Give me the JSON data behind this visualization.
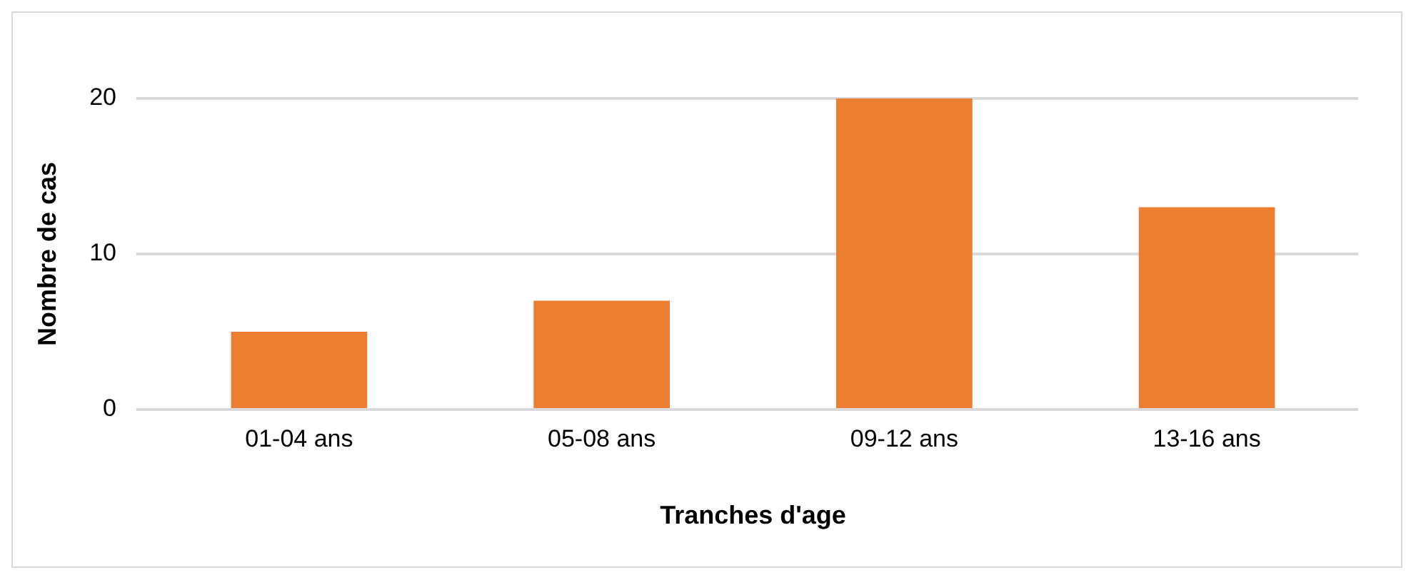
{
  "chart_data": {
    "type": "bar",
    "xlabel": "Tranches d'age",
    "ylabel": "Nombre de cas",
    "categories": [
      "01-04 ans",
      "05-08 ans",
      "09-12 ans",
      "13-16 ans"
    ],
    "values": [
      5,
      7,
      20,
      13
    ],
    "color": "#ed7d31",
    "ylim": [
      0,
      20
    ],
    "yticks": [
      0,
      10,
      20
    ],
    "grid": "y",
    "legend": false
  }
}
